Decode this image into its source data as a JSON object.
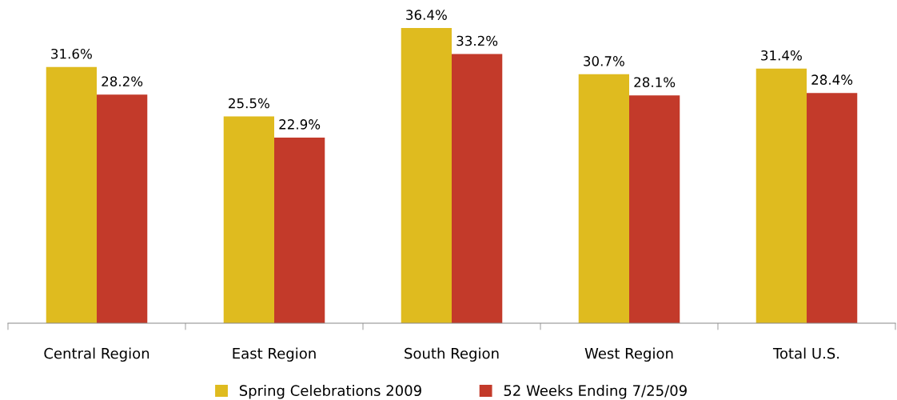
{
  "chart_data": {
    "type": "bar",
    "categories": [
      "Central Region",
      "East Region",
      "South Region",
      "West Region",
      "Total U.S."
    ],
    "series": [
      {
        "name": "Spring Celebrations 2009",
        "color": "#dfbb1f",
        "values": [
          31.6,
          25.5,
          36.4,
          30.7,
          31.4
        ],
        "value_labels": [
          "31.6%",
          "25.5%",
          "36.4%",
          "30.7%",
          "31.4%"
        ]
      },
      {
        "name": "52 Weeks Ending 7/25/09",
        "color": "#c33a2a",
        "values": [
          28.2,
          22.9,
          33.2,
          28.1,
          28.4
        ],
        "value_labels": [
          "28.2%",
          "22.9%",
          "33.2%",
          "28.1%",
          "28.4%"
        ]
      }
    ],
    "grid": false,
    "legend": "bottom",
    "tick_labels": "x"
  }
}
